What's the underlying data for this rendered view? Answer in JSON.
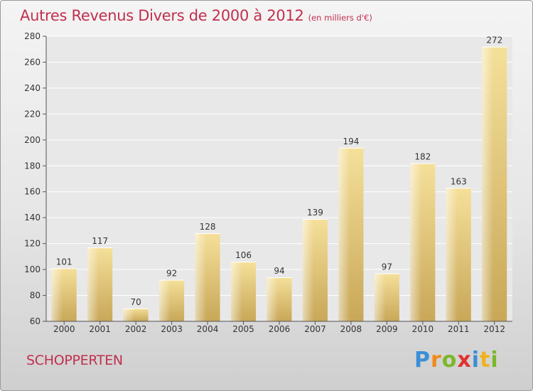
{
  "title": "Autres Revenus Divers de 2000 à 2012",
  "subtitle": "(en milliers d'€)",
  "commune": "SCHOPPERTEN",
  "logo": {
    "text": "Proxiti",
    "letters": [
      {
        "ch": "P",
        "color": "#3b8fd6"
      },
      {
        "ch": "r",
        "color": "#f08a1c"
      },
      {
        "ch": "o",
        "color": "#7ab829"
      },
      {
        "ch": "x",
        "color": "#e0322f"
      },
      {
        "ch": "i",
        "color": "#3b8fd6"
      },
      {
        "ch": "t",
        "color": "#f0b21c"
      },
      {
        "ch": "i",
        "color": "#7ab829"
      }
    ]
  },
  "colors": {
    "accent": "#c0304e",
    "bar_light": "#f5e09a",
    "bar_dark": "#c9a858"
  },
  "chart_data": {
    "type": "bar",
    "categories": [
      "2000",
      "2001",
      "2002",
      "2003",
      "2004",
      "2005",
      "2006",
      "2007",
      "2008",
      "2009",
      "2010",
      "2011",
      "2012"
    ],
    "values": [
      101,
      117,
      70,
      92,
      128,
      106,
      94,
      139,
      194,
      97,
      182,
      163,
      272
    ],
    "ylim": [
      60,
      280
    ],
    "yticks": [
      60,
      80,
      100,
      120,
      140,
      160,
      180,
      200,
      220,
      240,
      260,
      280
    ],
    "grid": true
  }
}
